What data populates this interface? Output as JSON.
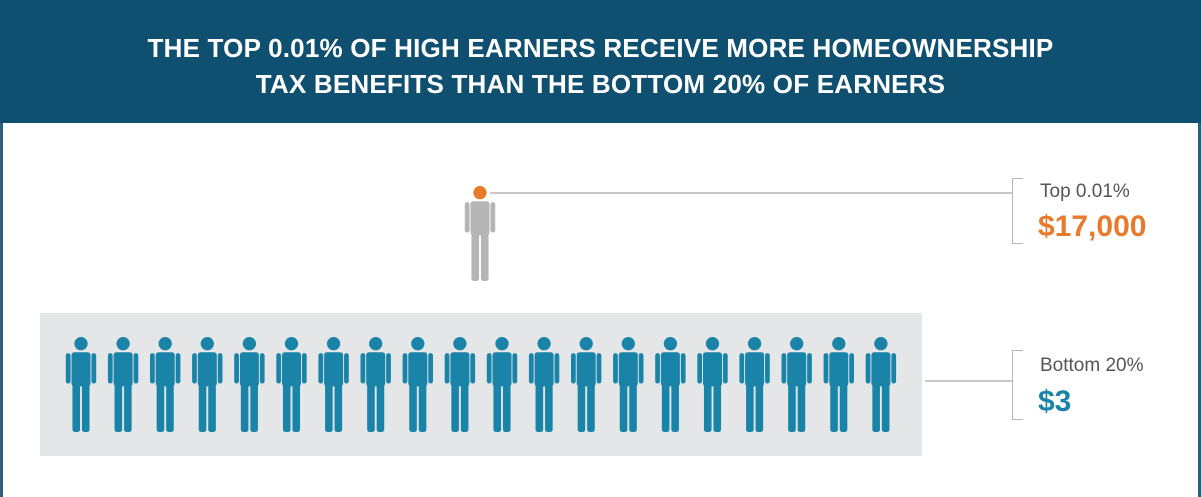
{
  "header": {
    "title_line1": "THE TOP 0.01% OF HIGH EARNERS RECEIVE MORE HOMEOWNERSHIP",
    "title_line2": "TAX BENEFITS  THAN THE BOTTOM 20% OF EARNERS"
  },
  "colors": {
    "header_bg": "#0f4f70",
    "top_accent": "#e87a2c",
    "bottom_accent": "#1a84a8",
    "top_figure": "#b5b5b5",
    "bottom_figure": "#1a84a8"
  },
  "chart_data": {
    "type": "pictograph",
    "groups": [
      {
        "label": "Top 0.01%",
        "value_label": "$17,000",
        "value": 17000,
        "figures": 1
      },
      {
        "label": "Bottom 20%",
        "value_label": "$3",
        "value": 3,
        "figures": 20
      }
    ]
  }
}
